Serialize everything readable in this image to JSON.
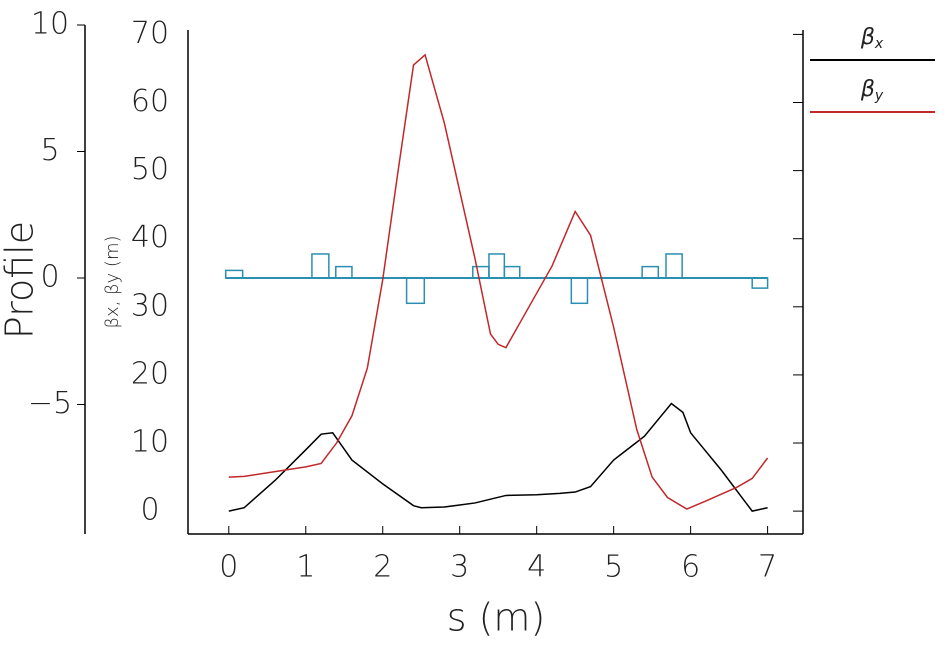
{
  "chart_data": {
    "type": "line",
    "xlabel": "s (m)",
    "ylabel": "βx, βy (m)",
    "y2label": "Profile",
    "xlim": [
      -0.53,
      7.46
    ],
    "xticks": [
      0,
      1,
      2,
      3,
      4,
      5,
      6,
      7
    ],
    "ylim": [
      -3.36,
      70.5
    ],
    "yticks": [
      0,
      10,
      20,
      30,
      40,
      50,
      60,
      70
    ],
    "y2lim": [
      -10,
      10
    ],
    "y2ticks": [
      {
        "value": -5,
        "label": "−5"
      },
      0,
      5,
      10
    ],
    "series": [
      {
        "name": "βx",
        "color": "#000000",
        "x": [
          0,
          0.2,
          0.6,
          1.0,
          1.2,
          1.35,
          1.6,
          2.0,
          2.4,
          2.5,
          2.8,
          3.0,
          3.2,
          3.6,
          4.0,
          4.3,
          4.5,
          4.7,
          5.0,
          5.4,
          5.75,
          5.9,
          6.0,
          6.4,
          6.7,
          6.8,
          7.0
        ],
        "values": [
          0,
          0.5,
          4.5,
          9,
          11.3,
          11.5,
          7.5,
          4,
          0.8,
          0.5,
          0.6,
          0.9,
          1.2,
          2.3,
          2.4,
          2.6,
          2.8,
          3.6,
          7.5,
          11,
          15.8,
          14.5,
          11.5,
          6,
          1.5,
          0,
          0.5
        ]
      },
      {
        "name": "βy",
        "color": "#c0282b",
        "x": [
          0,
          0.2,
          0.6,
          1.0,
          1.2,
          1.4,
          1.6,
          1.8,
          2.0,
          2.2,
          2.4,
          2.55,
          2.8,
          3.0,
          3.2,
          3.4,
          3.5,
          3.6,
          3.8,
          4.2,
          4.5,
          4.7,
          5.0,
          5.3,
          5.5,
          5.7,
          5.95,
          6.2,
          6.6,
          6.8,
          7.0
        ],
        "values": [
          5,
          5.1,
          5.8,
          6.5,
          7,
          10,
          14,
          21,
          34,
          50,
          65.5,
          67,
          57,
          47,
          37,
          26,
          24.5,
          24,
          28,
          36,
          44,
          40.5,
          27,
          12,
          5,
          2,
          0.3,
          1.5,
          3.5,
          4.8,
          7.8
        ]
      }
    ],
    "profile": {
      "color": "#2a8fb0",
      "starts": [
        -0.04,
        1.08,
        1.39,
        2.31,
        3.17,
        3.38,
        3.58,
        4.45,
        5.37,
        5.68,
        6.8
      ],
      "ends": [
        0.18,
        1.3,
        1.6,
        2.54,
        3.38,
        3.58,
        3.78,
        4.66,
        5.58,
        5.89,
        7.0
      ],
      "values": [
        0.3,
        0.95,
        0.45,
        -1.0,
        0.45,
        0.95,
        0.45,
        -1.0,
        0.45,
        0.95,
        -0.4
      ]
    }
  }
}
